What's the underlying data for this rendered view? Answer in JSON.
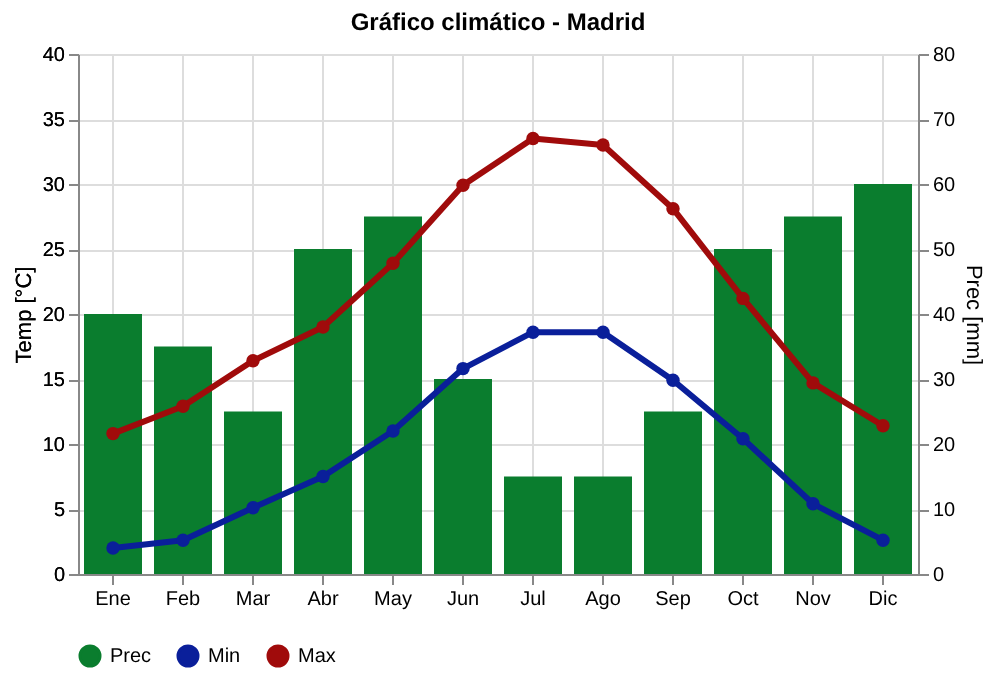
{
  "chart_data": {
    "type": "line",
    "title": "Gráfico climático - Madrid",
    "ylabel": "Temp [°C]",
    "y2label": "Prec [mm]",
    "categories": [
      "Ene",
      "Feb",
      "Mar",
      "Abr",
      "May",
      "Jun",
      "Jul",
      "Ago",
      "Sep",
      "Oct",
      "Nov",
      "Dic"
    ],
    "series": [
      {
        "name": "Prec",
        "type": "bar",
        "axis": "y2",
        "color": "#0a7d2e",
        "values": [
          40,
          35,
          25,
          50,
          55,
          30,
          15,
          15,
          25,
          50,
          55,
          60
        ]
      },
      {
        "name": "Min",
        "color": "#0a1f9a",
        "values": [
          2,
          2.6,
          5.1,
          7.5,
          11,
          15.8,
          18.6,
          18.6,
          14.9,
          10.4,
          5.4,
          2.6
        ]
      },
      {
        "name": "Max",
        "color": "#a00b0b",
        "values": [
          10.8,
          12.9,
          16.4,
          19,
          23.9,
          29.9,
          33.5,
          33,
          28.1,
          21.2,
          14.7,
          11.4
        ]
      }
    ],
    "ylim": [
      0,
      40
    ],
    "yticks": [
      0,
      5,
      10,
      15,
      20,
      25,
      30,
      35,
      40
    ],
    "y2lim": [
      0,
      80
    ],
    "y2ticks": [
      0,
      10,
      20,
      30,
      40,
      50,
      60,
      70,
      80
    ],
    "grid": true,
    "legend": "bottom",
    "marker": "circle",
    "line_style": "solid"
  }
}
